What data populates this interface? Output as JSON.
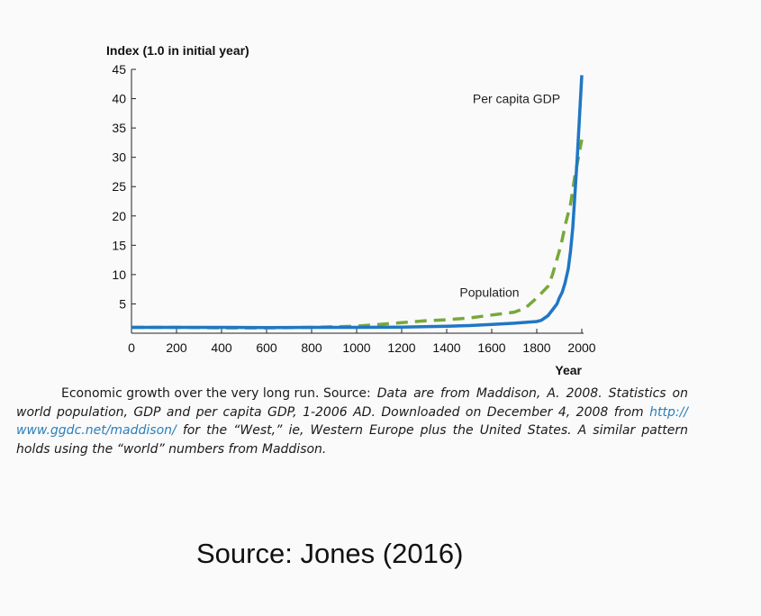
{
  "chart_data": {
    "type": "line",
    "ylabel": "Index (1.0 in initial year)",
    "xlabel": "Year",
    "xlim": [
      0,
      2000
    ],
    "ylim": [
      0,
      45
    ],
    "x_ticks": [
      0,
      200,
      400,
      600,
      800,
      1000,
      1200,
      1400,
      1600,
      1800,
      2000
    ],
    "y_ticks": [
      5,
      10,
      15,
      20,
      25,
      30,
      35,
      40,
      45
    ],
    "series": [
      {
        "name": "Per capita GDP",
        "color": "#1f77c4",
        "style": "solid",
        "points": [
          [
            0,
            1.0
          ],
          [
            200,
            1.0
          ],
          [
            400,
            1.0
          ],
          [
            600,
            0.95
          ],
          [
            800,
            1.0
          ],
          [
            1000,
            1.0
          ],
          [
            1200,
            1.05
          ],
          [
            1400,
            1.2
          ],
          [
            1500,
            1.3
          ],
          [
            1600,
            1.5
          ],
          [
            1700,
            1.7
          ],
          [
            1800,
            2.0
          ],
          [
            1820,
            2.2
          ],
          [
            1850,
            3.0
          ],
          [
            1870,
            4.0
          ],
          [
            1890,
            5.0
          ],
          [
            1900,
            6.0
          ],
          [
            1913,
            7.0
          ],
          [
            1925,
            8.5
          ],
          [
            1940,
            11.0
          ],
          [
            1950,
            14.0
          ],
          [
            1960,
            18.0
          ],
          [
            1970,
            24.0
          ],
          [
            1980,
            30.0
          ],
          [
            1990,
            37.0
          ],
          [
            2000,
            44.0
          ]
        ]
      },
      {
        "name": "Population",
        "color": "#78a83a",
        "style": "dashed",
        "points": [
          [
            0,
            1.0
          ],
          [
            200,
            1.0
          ],
          [
            400,
            0.9
          ],
          [
            600,
            0.9
          ],
          [
            800,
            1.0
          ],
          [
            1000,
            1.2
          ],
          [
            1100,
            1.5
          ],
          [
            1200,
            1.8
          ],
          [
            1300,
            2.1
          ],
          [
            1400,
            2.3
          ],
          [
            1500,
            2.6
          ],
          [
            1600,
            3.1
          ],
          [
            1700,
            3.6
          ],
          [
            1750,
            4.3
          ],
          [
            1800,
            6.0
          ],
          [
            1850,
            8.0
          ],
          [
            1870,
            10.0
          ],
          [
            1900,
            14.0
          ],
          [
            1913,
            16.0
          ],
          [
            1930,
            19.0
          ],
          [
            1950,
            22.0
          ],
          [
            1960,
            24.5
          ],
          [
            1970,
            27.0
          ],
          [
            1980,
            29.0
          ],
          [
            1990,
            31.0
          ],
          [
            2000,
            33.0
          ]
        ]
      }
    ],
    "annotations": [
      {
        "text": "Per capita GDP",
        "x": 1710,
        "y": 40
      },
      {
        "text": "Population",
        "x": 1590,
        "y": 7
      }
    ]
  },
  "caption": {
    "lead": "Economic growth over the very long run. Source:",
    "body": "Data are from Maddison, A. 2008. Statistics on world population, GDP and per capita GDP, 1-2006 AD. Downloaded on December 4, 2008 from",
    "link": "http:// www.ggdc.net/maddison/",
    "tail": "for the “West,” ie, Western Europe plus the United States. A similar pattern holds using the “world” numbers from Maddison."
  },
  "source_text": "Source: Jones (2016)"
}
